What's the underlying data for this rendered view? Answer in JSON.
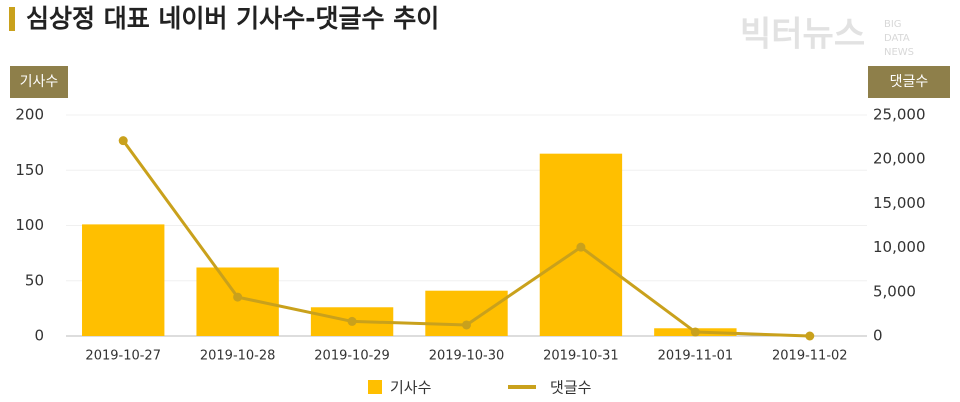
{
  "chart_data": {
    "type": "bar",
    "title": "심상정 대표 네이버 기사수-댓글수 추이",
    "y_label": "기사수",
    "y2_label": "댓글수",
    "categories": [
      "2019-10-27",
      "2019-10-28",
      "2019-10-29",
      "2019-10-30",
      "2019-10-31",
      "2019-11-01",
      "2019-11-02"
    ],
    "series": [
      {
        "name": "기사수",
        "type": "bar",
        "color": "#ffbf00",
        "values": [
          101,
          62,
          26,
          41,
          165,
          7,
          0
        ]
      },
      {
        "name": "댓글수",
        "type": "line",
        "axis": "y2",
        "color": "#c9a11c",
        "values": [
          22100,
          4400,
          1650,
          1250,
          10050,
          450,
          0
        ]
      }
    ],
    "ylim": [
      0,
      200
    ],
    "yticks": [
      0,
      50,
      100,
      150,
      200
    ],
    "y2lim": [
      0,
      25000
    ],
    "y2ticks": [
      0,
      {
        "value": 5000,
        "label": "5,000"
      },
      {
        "value": 10000,
        "label": "10,000"
      },
      {
        "value": 15000,
        "label": "15,000"
      },
      {
        "value": 20000,
        "label": "20,000"
      },
      {
        "value": 25000,
        "label": "25,000"
      }
    ],
    "grid": true
  },
  "logo": {
    "text": "빅터뉴스",
    "sub": [
      "BIG",
      "DATA",
      "NEWS"
    ]
  }
}
